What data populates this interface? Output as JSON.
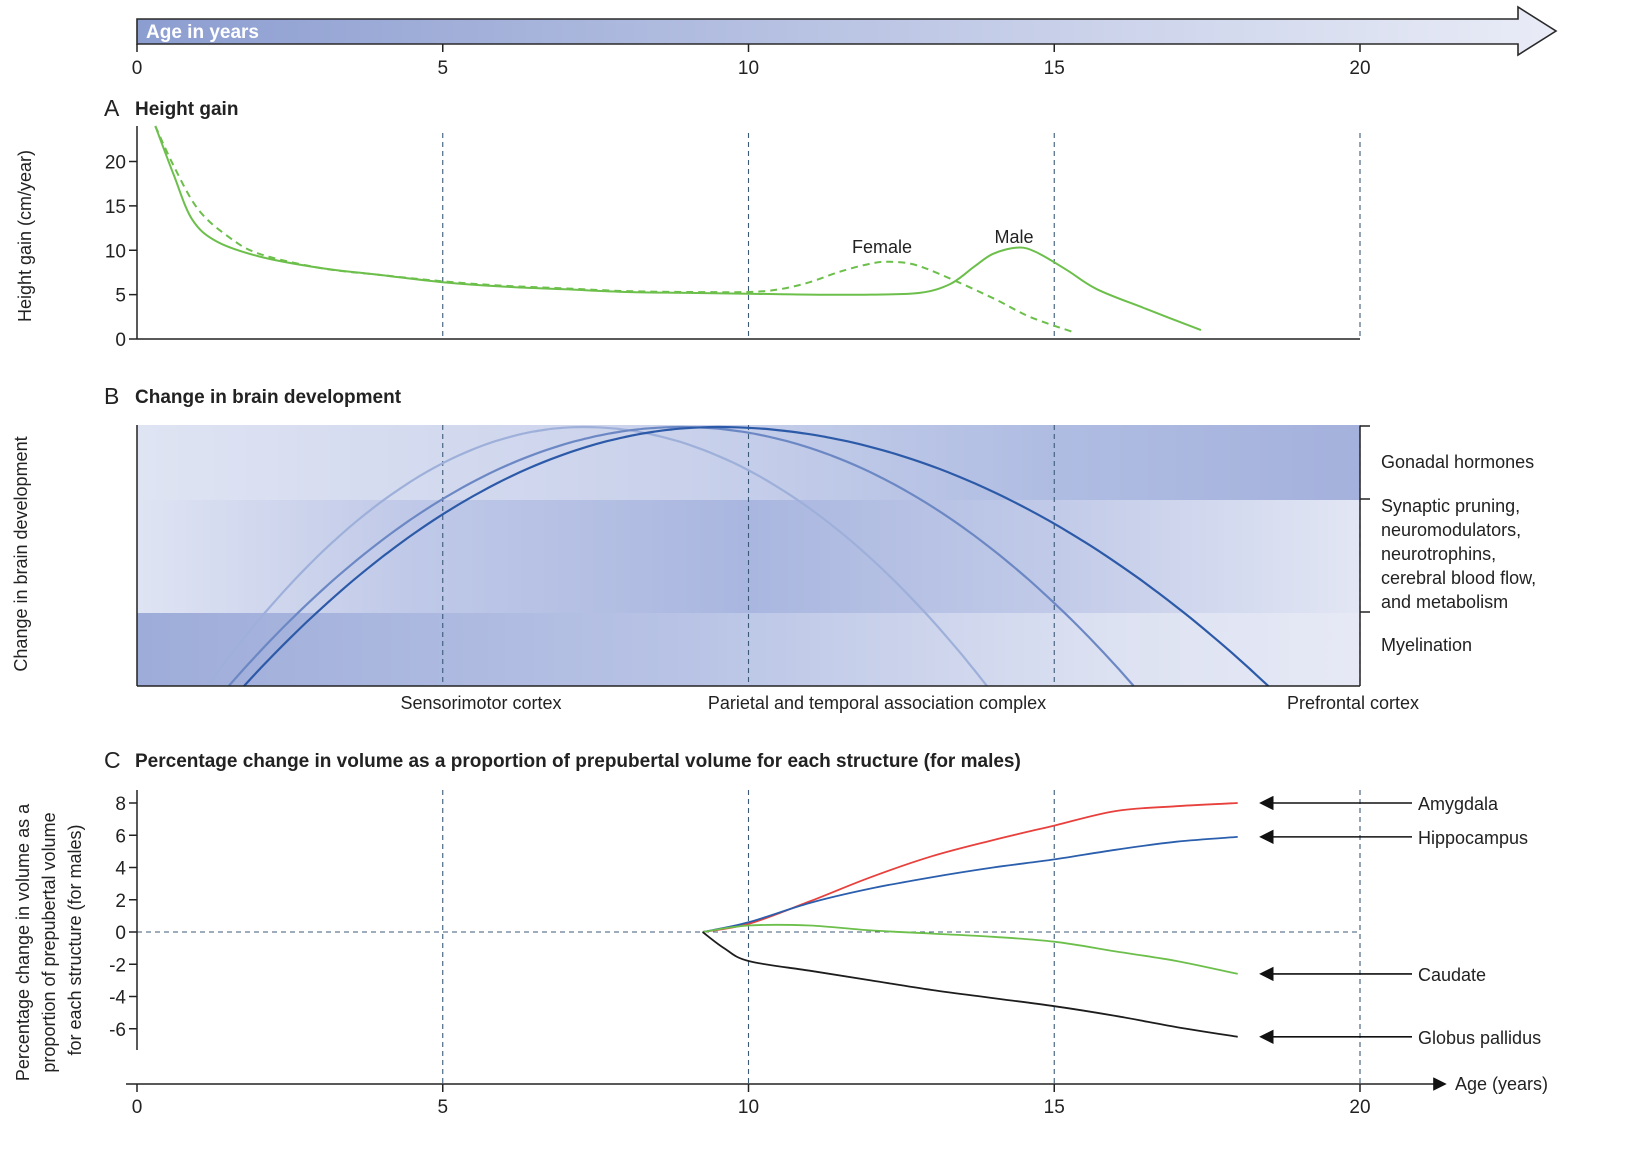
{
  "age_header": {
    "label": "Age in years",
    "ticks": [
      0,
      5,
      10,
      15,
      20
    ]
  },
  "chart_data": [
    {
      "id": "A",
      "type": "line",
      "panel_letter": "A",
      "title": "Height gain",
      "ylabel": "Height gain (cm/year)",
      "xlim": [
        0,
        20
      ],
      "ylim": [
        0,
        24
      ],
      "yticks": [
        0,
        5,
        10,
        15,
        20
      ],
      "vertical_gridlines": [
        5,
        10,
        15,
        20
      ],
      "series": [
        {
          "name": "Female",
          "style": "dashed",
          "color": "#6cbf4b",
          "points": [
            [
              0.3,
              24
            ],
            [
              0.6,
              19.5
            ],
            [
              1.0,
              14.6
            ],
            [
              1.5,
              11.5
            ],
            [
              2,
              9.6
            ],
            [
              3,
              8.0
            ],
            [
              4,
              7.2
            ],
            [
              5,
              6.5
            ],
            [
              6,
              6.0
            ],
            [
              7,
              5.7
            ],
            [
              8,
              5.4
            ],
            [
              9,
              5.3
            ],
            [
              10,
              5.3
            ],
            [
              10.5,
              5.6
            ],
            [
              11,
              6.4
            ],
            [
              11.5,
              7.6
            ],
            [
              12,
              8.5
            ],
            [
              12.3,
              8.7
            ],
            [
              12.7,
              8.4
            ],
            [
              13.2,
              7.1
            ],
            [
              14,
              4.6
            ],
            [
              14.6,
              2.5
            ],
            [
              15.3,
              0.8
            ]
          ]
        },
        {
          "name": "Male",
          "style": "solid",
          "color": "#6cbf4b",
          "points": [
            [
              0.3,
              24
            ],
            [
              0.6,
              18.5
            ],
            [
              0.9,
              13.5
            ],
            [
              1.3,
              11.0
            ],
            [
              2,
              9.3
            ],
            [
              3,
              8.0
            ],
            [
              4,
              7.2
            ],
            [
              5,
              6.4
            ],
            [
              6,
              5.9
            ],
            [
              7,
              5.6
            ],
            [
              8,
              5.3
            ],
            [
              9,
              5.2
            ],
            [
              10,
              5.1
            ],
            [
              11,
              5.0
            ],
            [
              12,
              5.0
            ],
            [
              12.8,
              5.2
            ],
            [
              13.3,
              6.2
            ],
            [
              13.7,
              8.2
            ],
            [
              14.0,
              9.6
            ],
            [
              14.4,
              10.3
            ],
            [
              14.7,
              9.8
            ],
            [
              15.2,
              7.8
            ],
            [
              15.7,
              5.6
            ],
            [
              16.5,
              3.4
            ],
            [
              17.4,
              1.0
            ]
          ]
        }
      ],
      "annotations": [
        "Female",
        "Male"
      ]
    },
    {
      "id": "B",
      "type": "line",
      "panel_letter": "B",
      "title": "Change in brain development",
      "ylabel": "Change in brain development",
      "xlim": [
        0,
        20
      ],
      "vertical_gridlines": [
        5,
        10,
        15,
        20
      ],
      "x_region_labels": [
        {
          "text": "Sensorimotor cortex",
          "x": 5.6
        },
        {
          "text": "Parietal and temporal association complex",
          "x": 12.2
        },
        {
          "text": "Prefrontal cortex",
          "x": 19.9
        }
      ],
      "bands": [
        {
          "label": "Gonadal hormones",
          "level": "top"
        },
        {
          "label": "Synaptic pruning, neuromodulators, neurotrophins, cerebral blood flow, and metabolism",
          "level": "middle"
        },
        {
          "label": "Myelination",
          "level": "bottom"
        }
      ],
      "curves": [
        {
          "region": "Sensorimotor cortex",
          "start": 1.15,
          "peak": 7.3,
          "end": 13.9,
          "color": "#9eb0da"
        },
        {
          "region": "Parietal and temporal association complex",
          "start": 1.5,
          "peak": 8.9,
          "end": 16.3,
          "color": "#6c88c4"
        },
        {
          "region": "Prefrontal cortex",
          "start": 1.75,
          "peak": 9.5,
          "end": 18.5,
          "color": "#2c5aa8"
        }
      ]
    },
    {
      "id": "C",
      "type": "line",
      "panel_letter": "C",
      "title": "Percentage change in volume as a proportion of prepubertal volume for each structure (for males)",
      "ylabel_lines": [
        "Percentage change in volume as a",
        "proportion of prepubertal volume",
        "for each structure (for males)"
      ],
      "xlabel": "Age (years)",
      "xlim": [
        0,
        20
      ],
      "ylim": [
        -6,
        8
      ],
      "yticks": [
        8,
        6,
        4,
        2,
        0,
        -2,
        -4,
        -6
      ],
      "xticks": [
        0,
        5,
        10,
        15,
        20
      ],
      "vertical_gridlines": [
        5,
        10,
        15,
        20
      ],
      "series": [
        {
          "name": "Amygdala",
          "color": "#e8403c",
          "points": [
            [
              9.25,
              0
            ],
            [
              10,
              0.5
            ],
            [
              11,
              1.9
            ],
            [
              12,
              3.4
            ],
            [
              13,
              4.7
            ],
            [
              14,
              5.7
            ],
            [
              15,
              6.6
            ],
            [
              16,
              7.5
            ],
            [
              17,
              7.8
            ],
            [
              18,
              8.0
            ]
          ]
        },
        {
          "name": "Hippocampus",
          "color": "#2b5fae",
          "points": [
            [
              9.25,
              0
            ],
            [
              10,
              0.6
            ],
            [
              11,
              1.8
            ],
            [
              12,
              2.7
            ],
            [
              13,
              3.4
            ],
            [
              14,
              4.0
            ],
            [
              15,
              4.5
            ],
            [
              16,
              5.1
            ],
            [
              17,
              5.6
            ],
            [
              18,
              5.9
            ]
          ]
        },
        {
          "name": "Caudate",
          "color": "#6cbf4b",
          "points": [
            [
              9.25,
              0
            ],
            [
              10,
              0.4
            ],
            [
              11,
              0.4
            ],
            [
              12,
              0.1
            ],
            [
              13,
              -0.1
            ],
            [
              14,
              -0.3
            ],
            [
              15,
              -0.6
            ],
            [
              16,
              -1.2
            ],
            [
              17,
              -1.8
            ],
            [
              18,
              -2.6
            ]
          ]
        },
        {
          "name": "Globus pallidus",
          "color": "#1d1d1d",
          "points": [
            [
              9.25,
              0
            ],
            [
              9.6,
              -1.0
            ],
            [
              10,
              -1.8
            ],
            [
              11,
              -2.4
            ],
            [
              12,
              -3.0
            ],
            [
              13,
              -3.6
            ],
            [
              14,
              -4.1
            ],
            [
              15,
              -4.6
            ],
            [
              16,
              -5.2
            ],
            [
              17,
              -5.9
            ],
            [
              18,
              -6.5
            ]
          ]
        }
      ]
    }
  ]
}
